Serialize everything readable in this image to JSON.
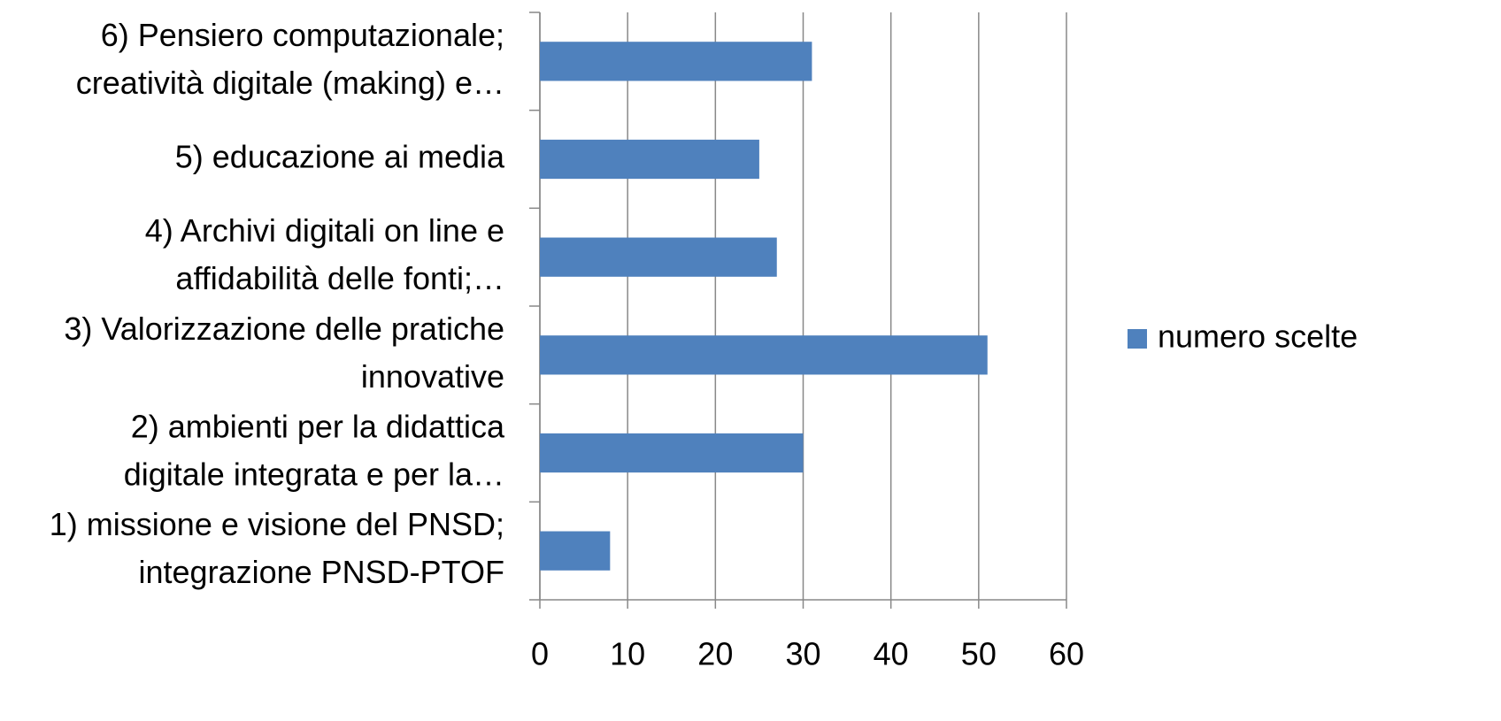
{
  "chart_data": {
    "type": "bar",
    "orientation": "horizontal",
    "categories": [
      [
        "1) missione e visione del PNSD;",
        "integrazione PNSD-PTOF"
      ],
      [
        "2) ambienti per la didattica",
        "digitale integrata e per la…"
      ],
      [
        "3) Valorizzazione delle pratiche",
        "innovative"
      ],
      [
        "4) Archivi digitali on line e",
        "affidabilità delle fonti;…"
      ],
      [
        "5) educazione ai media"
      ],
      [
        "6) Pensiero computazionale;",
        "creatività digitale (making)  e…"
      ]
    ],
    "series": [
      {
        "name": "numero scelte",
        "color": "#4f81bd",
        "values": [
          8,
          30,
          51,
          27,
          25,
          31
        ]
      }
    ],
    "xlim": [
      0,
      60
    ],
    "xticks": [
      0,
      10,
      20,
      30,
      40,
      50,
      60
    ],
    "grid": true,
    "legend": "right"
  }
}
